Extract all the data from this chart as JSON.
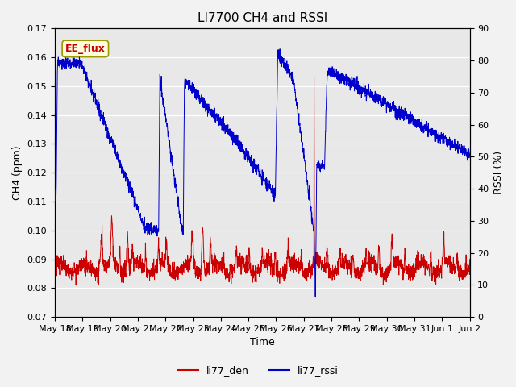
{
  "title": "LI7700 CH4 and RSSI",
  "xlabel": "Time",
  "ylabel_left": "CH4 (ppm)",
  "ylabel_right": "RSSI (%)",
  "ylim_left": [
    0.07,
    0.17
  ],
  "ylim_right": [
    0,
    90
  ],
  "yticks_left": [
    0.07,
    0.08,
    0.09,
    0.1,
    0.11,
    0.12,
    0.13,
    0.14,
    0.15,
    0.16,
    0.17
  ],
  "yticks_right": [
    0,
    10,
    20,
    30,
    40,
    50,
    60,
    70,
    80,
    90
  ],
  "xtick_labels": [
    "May 18",
    "May 19",
    "May 20",
    "May 21",
    "May 22",
    "May 23",
    "May 24",
    "May 25",
    "May 26",
    "May 27",
    "May 28",
    "May 29",
    "May 30",
    "May 31",
    "Jun 1",
    "Jun 2"
  ],
  "color_red": "#cc0000",
  "color_blue": "#0000cc",
  "bg_color": "#e8e8e8",
  "annotation_text": "EE_flux",
  "annotation_color": "#cc0000",
  "legend_labels": [
    "li77_den",
    "li77_rssi"
  ],
  "title_fontsize": 11,
  "label_fontsize": 9,
  "tick_fontsize": 8
}
